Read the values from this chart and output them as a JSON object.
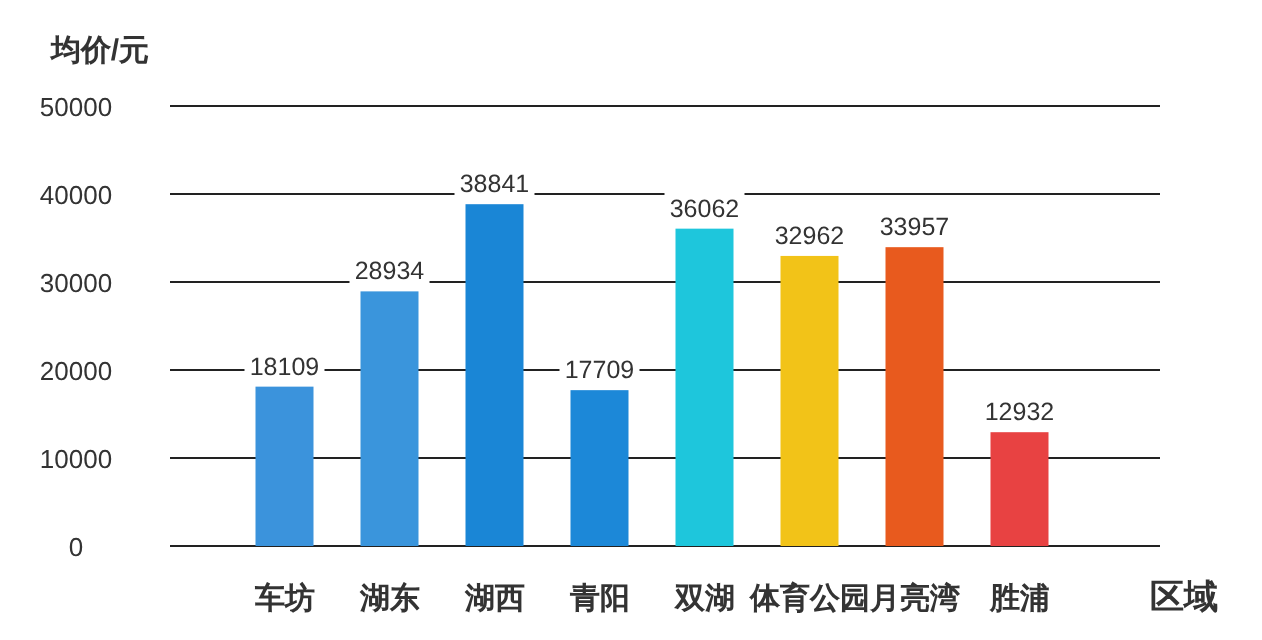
{
  "chart_data": {
    "type": "bar",
    "ylabel": "均价/元",
    "xlabel": "区域",
    "categories": [
      "车坊",
      "湖东",
      "湖西",
      "青阳",
      "双湖",
      "体育公园",
      "月亮湾",
      "胜浦"
    ],
    "values": [
      18109,
      28934,
      38841,
      17709,
      36062,
      32962,
      33957,
      12932
    ],
    "colors": [
      "#3b93dc",
      "#3a95dc",
      "#1a86d6",
      "#1c88d8",
      "#1ec6dc",
      "#f2c318",
      "#e85a1e",
      "#e84242"
    ],
    "ylim": [
      0,
      50000
    ],
    "yticks": [
      0,
      10000,
      20000,
      30000,
      40000,
      50000
    ],
    "grid": "y",
    "data_labels": true
  }
}
